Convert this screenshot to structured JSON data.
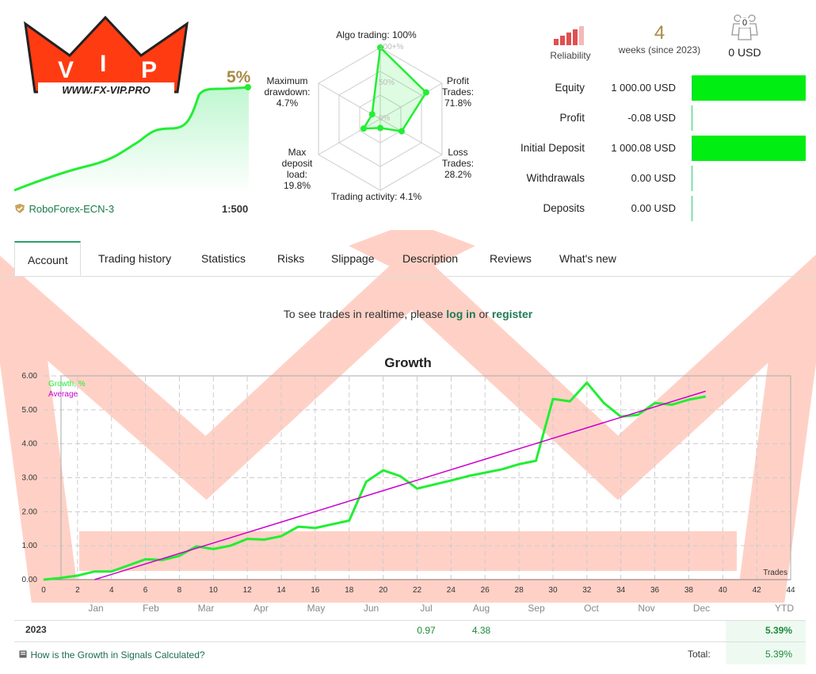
{
  "header": {
    "logo_text": "WWW.FX-VIP.PRO",
    "logo_letters": [
      "V",
      "I",
      "P"
    ],
    "growth_pct": "5%",
    "broker": "RoboForex-ECN-3",
    "leverage": "1:500"
  },
  "radar": {
    "labels": {
      "algo": "Algo trading: 100%",
      "profit": "Profit\nTrades:\n71.8%",
      "loss": "Loss\nTrades:\n28.2%",
      "activity": "Trading activity: 4.1%",
      "load": "Max\ndeposit\nload:\n19.8%",
      "drawdown": "Maximum\ndrawdown:\n4.7%"
    },
    "ring_labels": [
      "100+%",
      "50%",
      "0%"
    ],
    "values": {
      "algo": 100,
      "profit": 71.8,
      "loss": 28.2,
      "activity": 4.1,
      "load": 19.8,
      "drawdown": 4.7
    }
  },
  "top_stats": {
    "reliability_label": "Reliability",
    "weeks_value": "4",
    "weeks_label": "weeks (since 2023)",
    "subscribers_count": "0",
    "subscribers_usd": "0 USD"
  },
  "stats": [
    {
      "label": "Equity",
      "value": "1 000.00 USD",
      "fill": 1.0
    },
    {
      "label": "Profit",
      "value": "-0.08 USD",
      "fill": 0.0
    },
    {
      "label": "Initial Deposit",
      "value": "1 000.08 USD",
      "fill": 1.0
    },
    {
      "label": "Withdrawals",
      "value": "0.00 USD",
      "fill": 0.0
    },
    {
      "label": "Deposits",
      "value": "0.00 USD",
      "fill": 0.0
    }
  ],
  "tabs": [
    "Account",
    "Trading history",
    "Statistics",
    "Risks",
    "Slippage",
    "Description",
    "Reviews",
    "What's new"
  ],
  "login": {
    "pre": "To see trades in realtime, please ",
    "login": "log in",
    "mid": " or ",
    "register": "register"
  },
  "chart_data": {
    "type": "line",
    "title": "Growth",
    "xlabel": "Trades",
    "ylabel": "",
    "xlim": [
      0,
      44
    ],
    "ylim": [
      0,
      6
    ],
    "x_ticks": [
      0,
      2,
      4,
      6,
      8,
      10,
      12,
      14,
      16,
      18,
      20,
      22,
      24,
      26,
      28,
      30,
      32,
      34,
      36,
      38,
      40,
      42,
      44
    ],
    "y_ticks": [
      "0.00",
      "1.00",
      "2.00",
      "3.00",
      "4.00",
      "5.00",
      "6.00"
    ],
    "legend": [
      "Growth, %",
      "Average"
    ],
    "legend_position": "top-left",
    "grid": true,
    "colors": {
      "growth": "#22ee33",
      "average": "#cc00cc"
    },
    "series": [
      {
        "name": "Growth, %",
        "x": [
          0,
          1,
          2,
          3,
          4,
          5,
          6,
          7,
          8,
          9,
          10,
          11,
          12,
          13,
          14,
          15,
          16,
          17,
          18,
          19,
          20,
          21,
          22,
          23,
          24,
          25,
          26,
          27,
          28,
          29,
          30,
          31,
          32,
          33,
          34,
          35,
          36,
          37,
          38,
          39
        ],
        "values": [
          0,
          0.05,
          0.12,
          0.24,
          0.24,
          0.42,
          0.6,
          0.58,
          0.7,
          0.98,
          0.9,
          1.0,
          1.2,
          1.18,
          1.28,
          1.56,
          1.52,
          1.63,
          1.74,
          2.88,
          3.22,
          3.05,
          2.68,
          2.8,
          2.92,
          3.05,
          3.15,
          3.25,
          3.4,
          3.5,
          5.32,
          5.25,
          5.8,
          5.2,
          4.8,
          4.85,
          5.2,
          5.15,
          5.3,
          5.39
        ]
      },
      {
        "name": "Average",
        "x": [
          3,
          39
        ],
        "values": [
          0,
          5.55
        ]
      }
    ]
  },
  "monthly": {
    "months": [
      "Jan",
      "Feb",
      "Mar",
      "Apr",
      "May",
      "Jun",
      "Jul",
      "Aug",
      "Sep",
      "Oct",
      "Nov",
      "Dec"
    ],
    "ytd_label": "YTD",
    "year": "2023",
    "values": [
      "",
      "",
      "",
      "",
      "",
      "",
      "0.97",
      "4.38",
      "",
      "",
      "",
      ""
    ],
    "ytd": "5.39%",
    "total_label": "Total:",
    "total": "5.39%",
    "calc_link": "How is the Growth in Signals Calculated?"
  }
}
